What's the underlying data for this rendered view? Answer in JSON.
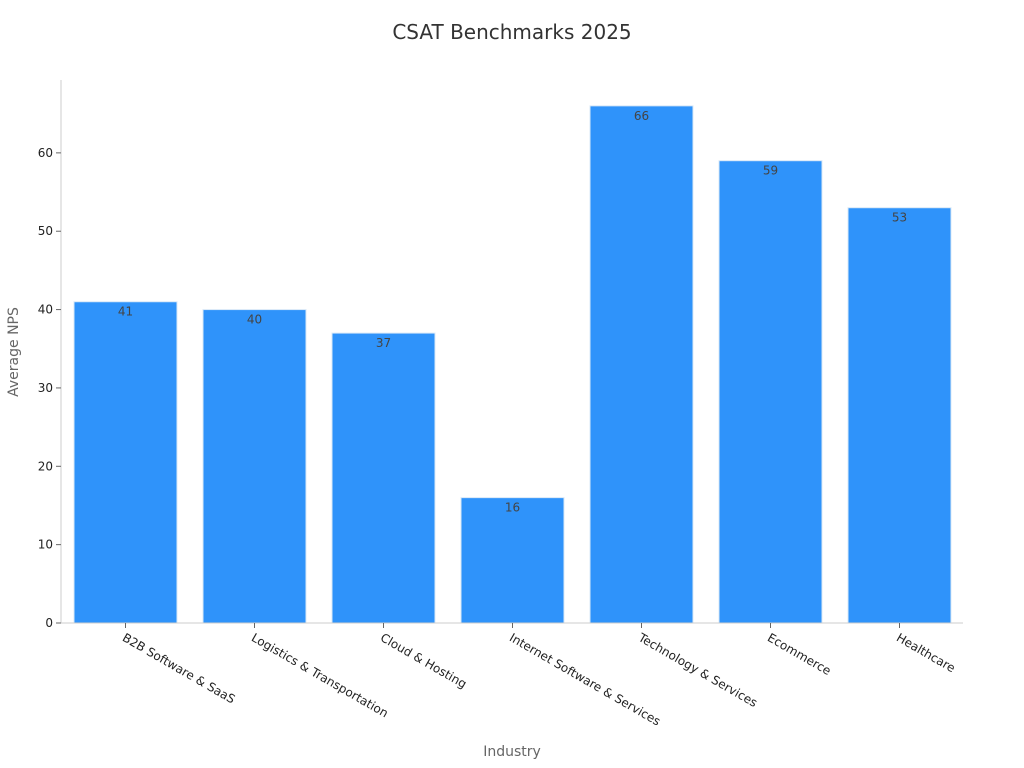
{
  "chart_data": {
    "type": "bar",
    "title": "CSAT Benchmarks 2025",
    "xlabel": "Industry",
    "ylabel": "Average NPS",
    "categories": [
      "B2B Software & SaaS",
      "Logistics & Transportation",
      "Cloud & Hosting",
      "Internet Software & Services",
      "Technology & Services",
      "Ecommerce",
      "Healthcare"
    ],
    "values": [
      41,
      40,
      37,
      16,
      66,
      59,
      53
    ],
    "ylim": [
      0,
      69.3
    ],
    "yticks": [
      0,
      10,
      20,
      30,
      40,
      50,
      60
    ],
    "grid": false,
    "bar_color": "#2f93fa",
    "data_labels": true
  }
}
